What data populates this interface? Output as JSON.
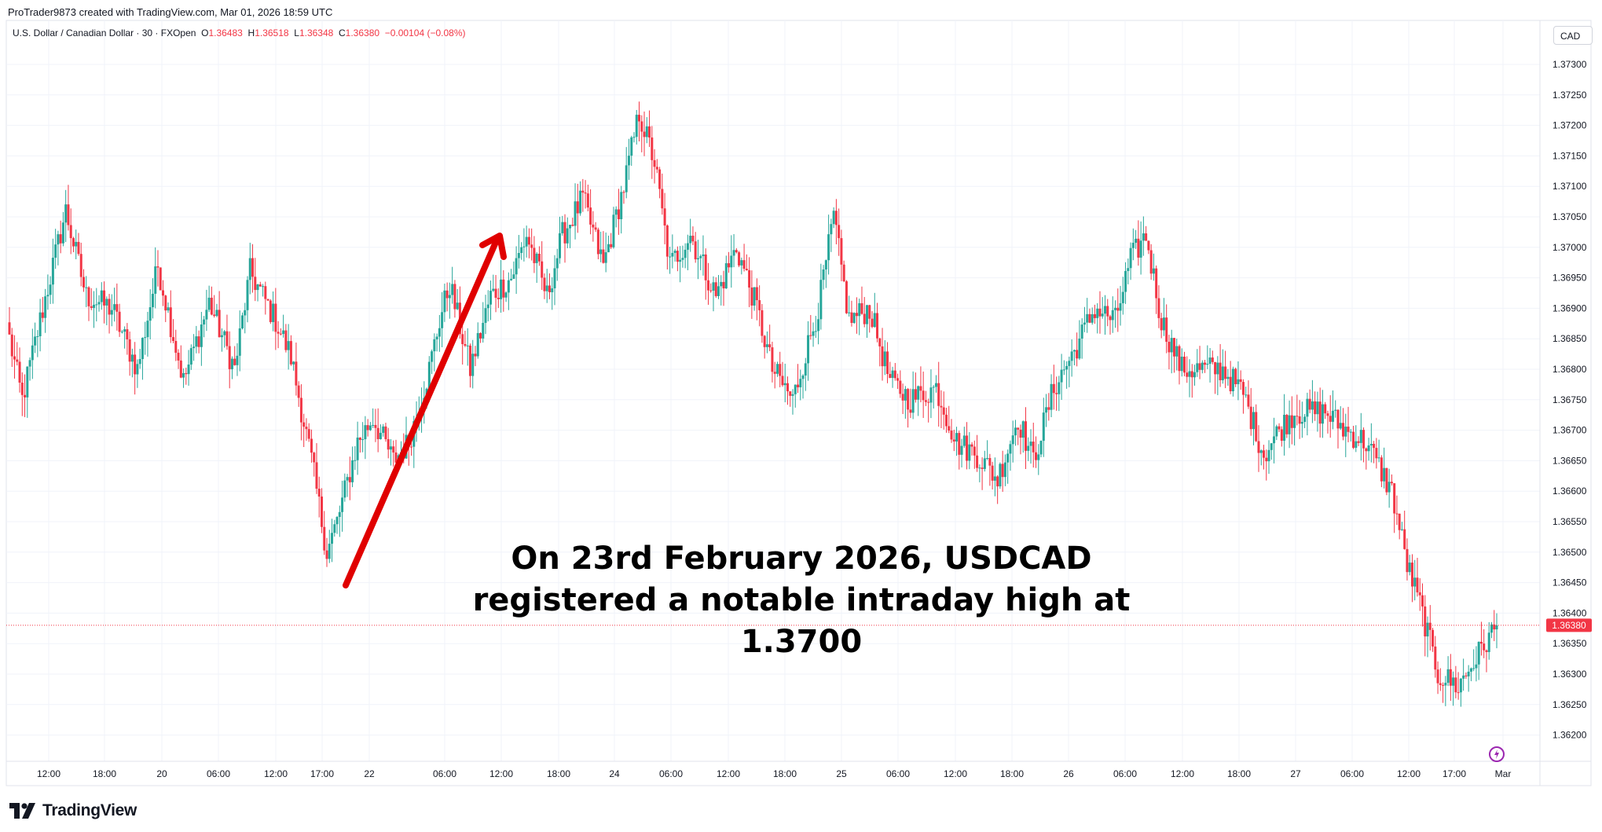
{
  "header": {
    "credit": "ProTrader9873 created with TradingView.com, Mar 01, 2026 18:59 UTC"
  },
  "legend": {
    "symbol": "U.S. Dollar / Canadian Dollar · 30 · FXOpen",
    "o_label": "O",
    "o_value": "1.36483",
    "h_label": "H",
    "h_value": "1.36518",
    "l_label": "L",
    "l_value": "1.36348",
    "c_label": "C",
    "c_value": "1.36380",
    "change": "−0.00104 (−0.08%)"
  },
  "currency_button": "CAD",
  "annotation": {
    "line1": "On 23rd February 2026, USDCAD",
    "line2": "registered a notable intraday high at",
    "line3": "1.3700"
  },
  "footer": {
    "brand": "TradingView"
  },
  "colors": {
    "up": "#26a69a",
    "down": "#f23645",
    "arrow": "#e00000",
    "grid": "#f0f3fa",
    "axis_text": "#131722"
  },
  "chart_data": {
    "type": "candlestick",
    "interval": "30",
    "y_axis_labels": [
      "1.37300",
      "1.37250",
      "1.37200",
      "1.37150",
      "1.37100",
      "1.37050",
      "1.37000",
      "1.36950",
      "1.36900",
      "1.36850",
      "1.36800",
      "1.36750",
      "1.36700",
      "1.36650",
      "1.36600",
      "1.36550",
      "1.36500",
      "1.36450",
      "1.36400",
      "1.36350",
      "1.36300",
      "1.36250",
      "1.36200"
    ],
    "ylim": [
      1.3618,
      1.3736
    ],
    "last_price": 1.3638,
    "last_price_label": "1.36380",
    "x_axis_labels": [
      "12:00",
      "18:00",
      "20",
      "06:00",
      "12:00",
      "17:00",
      "22",
      "06:00",
      "12:00",
      "18:00",
      "24",
      "06:00",
      "12:00",
      "18:00",
      "25",
      "06:00",
      "12:00",
      "18:00",
      "26",
      "06:00",
      "12:00",
      "18:00",
      "27",
      "06:00",
      "12:00",
      "17:00",
      "Mar"
    ],
    "x_axis_label_positions": [
      62,
      133,
      206,
      278,
      351,
      410,
      470,
      566,
      638,
      711,
      782,
      854,
      927,
      999,
      1071,
      1143,
      1216,
      1288,
      1360,
      1432,
      1505,
      1577,
      1649,
      1721,
      1793,
      1851,
      1913
    ],
    "keypoints_close": [
      [
        0,
        1.3685
      ],
      [
        5,
        1.3675
      ],
      [
        12,
        1.3688
      ],
      [
        22,
        1.3706
      ],
      [
        30,
        1.3692
      ],
      [
        40,
        1.369
      ],
      [
        50,
        1.368
      ],
      [
        58,
        1.3697
      ],
      [
        68,
        1.3678
      ],
      [
        78,
        1.3691
      ],
      [
        88,
        1.368
      ],
      [
        94,
        1.3696
      ],
      [
        104,
        1.3688
      ],
      [
        110,
        1.3682
      ],
      [
        118,
        1.3665
      ],
      [
        124,
        1.365
      ],
      [
        128,
        1.3655
      ],
      [
        136,
        1.3668
      ],
      [
        142,
        1.3672
      ],
      [
        150,
        1.3665
      ],
      [
        156,
        1.3668
      ],
      [
        164,
        1.368
      ],
      [
        168,
        1.3688
      ],
      [
        172,
        1.3694
      ],
      [
        180,
        1.368
      ],
      [
        188,
        1.3692
      ],
      [
        196,
        1.3695
      ],
      [
        202,
        1.3702
      ],
      [
        210,
        1.3692
      ],
      [
        216,
        1.3702
      ],
      [
        224,
        1.3708
      ],
      [
        232,
        1.3697
      ],
      [
        240,
        1.371
      ],
      [
        246,
        1.3722
      ],
      [
        252,
        1.3714
      ],
      [
        258,
        1.3697
      ],
      [
        266,
        1.3702
      ],
      [
        276,
        1.3692
      ],
      [
        284,
        1.37
      ],
      [
        292,
        1.369
      ],
      [
        298,
        1.368
      ],
      [
        306,
        1.3675
      ],
      [
        316,
        1.369
      ],
      [
        322,
        1.3705
      ],
      [
        328,
        1.3688
      ],
      [
        336,
        1.369
      ],
      [
        344,
        1.3678
      ],
      [
        352,
        1.3675
      ],
      [
        362,
        1.3677
      ],
      [
        370,
        1.3668
      ],
      [
        378,
        1.3666
      ],
      [
        386,
        1.3662
      ],
      [
        394,
        1.3672
      ],
      [
        400,
        1.3665
      ],
      [
        408,
        1.3677
      ],
      [
        416,
        1.3683
      ],
      [
        424,
        1.369
      ],
      [
        432,
        1.3688
      ],
      [
        438,
        1.3698
      ],
      [
        444,
        1.3702
      ],
      [
        450,
        1.3688
      ],
      [
        458,
        1.368
      ],
      [
        466,
        1.368
      ],
      [
        474,
        1.368
      ],
      [
        482,
        1.3676
      ],
      [
        490,
        1.3666
      ],
      [
        496,
        1.367
      ],
      [
        502,
        1.3673
      ],
      [
        508,
        1.3673
      ],
      [
        514,
        1.3673
      ],
      [
        522,
        1.367
      ],
      [
        530,
        1.3668
      ],
      [
        540,
        1.366
      ],
      [
        546,
        1.3648
      ],
      [
        552,
        1.364
      ],
      [
        558,
        1.363
      ],
      [
        566,
        1.3628
      ],
      [
        572,
        1.3632
      ],
      [
        578,
        1.3636
      ],
      [
        581,
        1.3638
      ]
    ]
  }
}
